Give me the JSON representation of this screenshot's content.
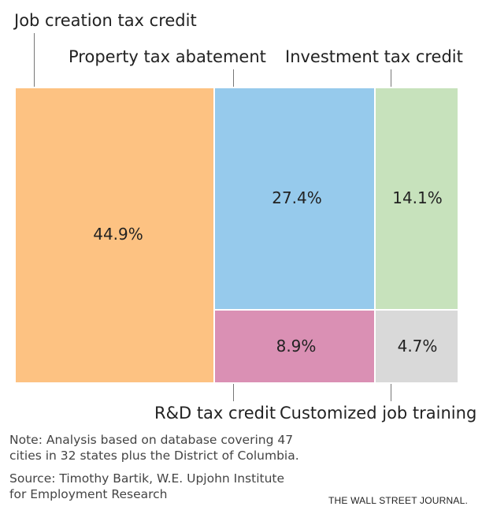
{
  "chart_data": {
    "type": "treemap",
    "title": "",
    "series": [
      {
        "name": "Job creation tax credit",
        "value": 44.9,
        "value_label": "44.9%",
        "color": "#FDC282"
      },
      {
        "name": "Property tax abatement",
        "value": 27.4,
        "value_label": "27.4%",
        "color": "#96CAEC"
      },
      {
        "name": "Investment tax credit",
        "value": 14.1,
        "value_label": "14.1%",
        "color": "#C7E2BC"
      },
      {
        "name": "R&D tax credit",
        "value": 8.9,
        "value_label": "8.9%",
        "color": "#DA90B4"
      },
      {
        "name": "Customized job training",
        "value": 4.7,
        "value_label": "4.7%",
        "color": "#D9D9D9"
      }
    ]
  },
  "note": {
    "line1": "Note: Analysis based on database covering 47",
    "line2": "cities in 32 states plus the District of Columbia."
  },
  "source": {
    "line1": "Source: Timothy Bartik, W.E. Upjohn Institute",
    "line2": "for Employment Research"
  },
  "brand": "THE WALL STREET JOURNAL."
}
